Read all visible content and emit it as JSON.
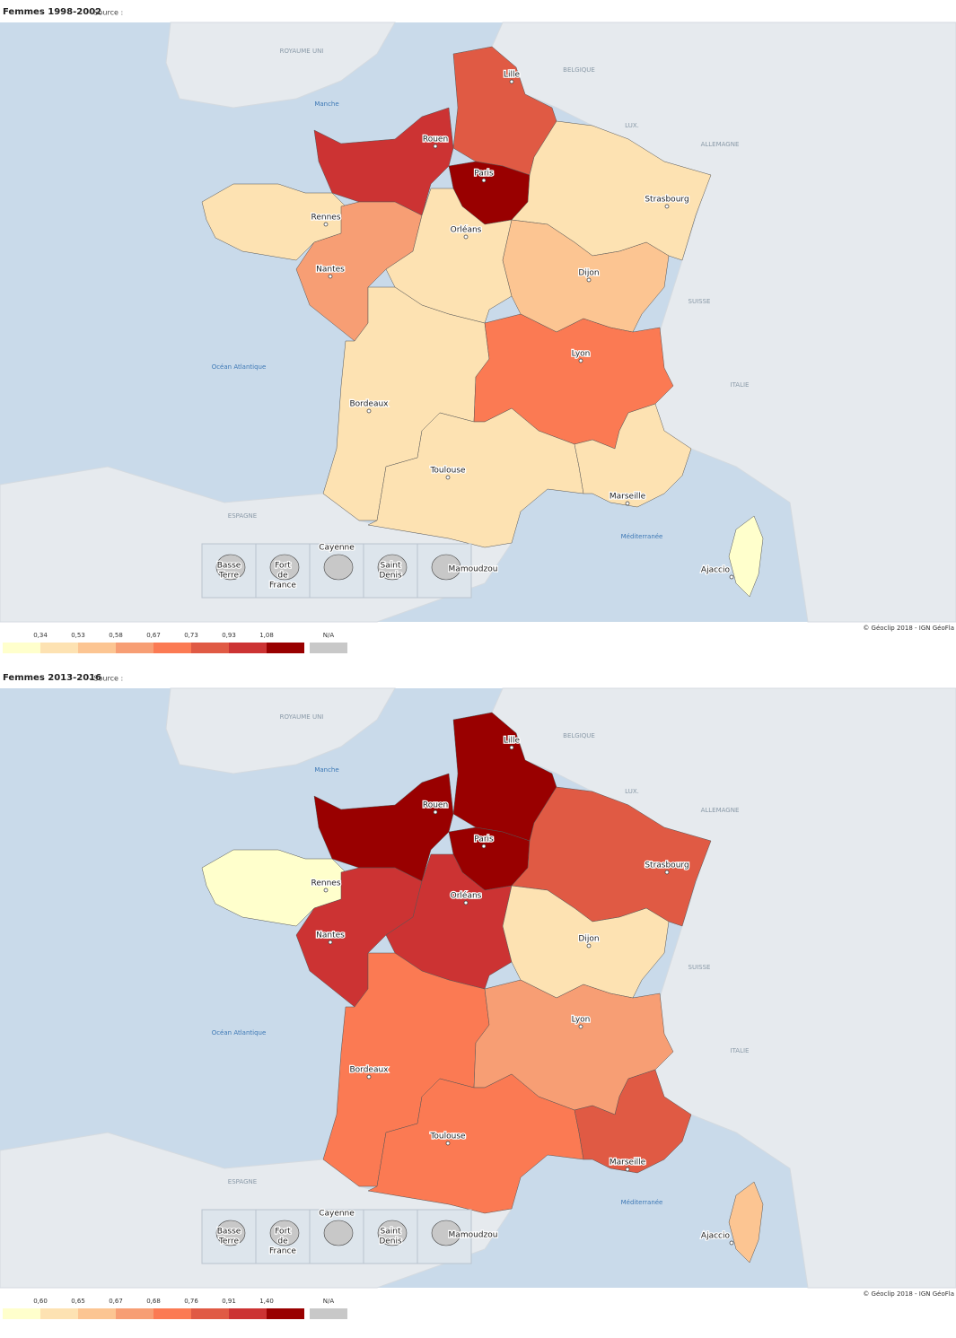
{
  "maps": [
    {
      "title": "Femmes 1998-2002",
      "source": "- Source :",
      "region_colors": [
        "#e05a44",
        "#cc3333",
        "#990000",
        "#fde2b2",
        "#fde2b2",
        "#f79e74",
        "#fde2b2",
        "#fcc592",
        "#fde2b2",
        "#fb7a53",
        "#fde2b2",
        "#fde2b2",
        "#ffffcc"
      ],
      "legend": {
        "ticks": [
          {
            "value": 0.34,
            "label": "0,34"
          },
          {
            "value": 0.53,
            "label": "0,53"
          },
          {
            "value": 0.58,
            "label": "0,58"
          },
          {
            "value": 0.67,
            "label": "0,67"
          },
          {
            "value": 0.73,
            "label": "0,73"
          },
          {
            "value": 0.93,
            "label": "0,93"
          },
          {
            "value": 1.08,
            "label": "1,08"
          }
        ]
      }
    },
    {
      "title": "Femmes 2013-2016",
      "source": "- Source :",
      "region_colors": [
        "#990000",
        "#990000",
        "#990000",
        "#e05a44",
        "#ffffcc",
        "#cc3333",
        "#cc3333",
        "#fde2b2",
        "#fb7a53",
        "#f79e74",
        "#fb7a53",
        "#e05a44",
        "#fcc592"
      ],
      "legend": {
        "ticks": [
          {
            "value": 0.6,
            "label": "0,60"
          },
          {
            "value": 0.65,
            "label": "0,65"
          },
          {
            "value": 0.67,
            "label": "0,67"
          },
          {
            "value": 0.68,
            "label": "0,68"
          },
          {
            "value": 0.76,
            "label": "0,76"
          },
          {
            "value": 0.91,
            "label": "0,91"
          },
          {
            "value": 1.4,
            "label": "1,40"
          }
        ]
      }
    }
  ],
  "legend_colors": [
    "#ffffcc",
    "#fde2b2",
    "#fcc592",
    "#f79e74",
    "#fb7a53",
    "#e05a44",
    "#cc3333",
    "#990000"
  ],
  "na_label": "N/A",
  "na_color": "#c8c8c8",
  "cities": [
    "Lille",
    "Rouen",
    "Paris",
    "Strasbourg",
    "Rennes",
    "Orléans",
    "Nantes",
    "Dijon",
    "Lyon",
    "Bordeaux",
    "Toulouse",
    "Marseille",
    "Ajaccio"
  ],
  "places": [
    "ROYAUME UNI",
    "BELGIQUE",
    "Manche",
    "LUX.",
    "ALLEMAGNE",
    "SUISSE",
    "ITALIE",
    "Océan Atlantique",
    "ESPAGNE",
    "Méditerranée"
  ],
  "overseas": [
    [
      "Basse",
      "Terre"
    ],
    [
      "Fort",
      "de",
      "France"
    ],
    [
      "Cayenne"
    ],
    [
      "Saint",
      "Denis"
    ],
    [
      "Mamoudzou"
    ]
  ],
  "credit": "© Géoclip 2018 - IGN GéoFla"
}
